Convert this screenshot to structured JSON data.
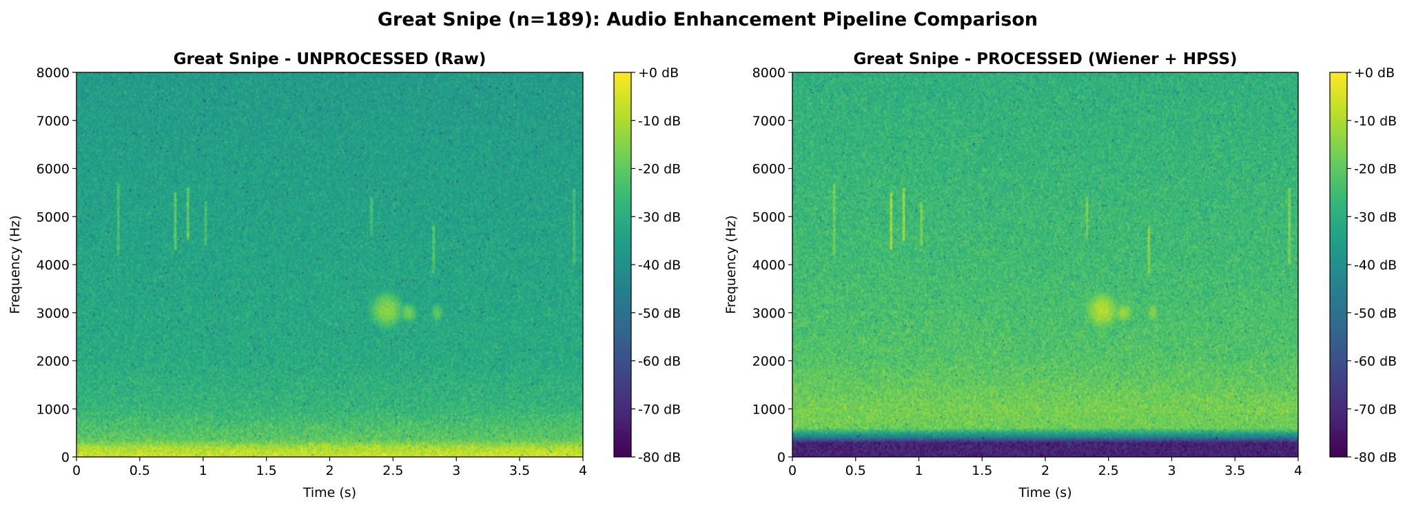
{
  "figure": {
    "suptitle": "Great Snipe (n=189): Audio Enhancement Pipeline Comparison"
  },
  "colormap": [
    "#440154",
    "#482878",
    "#3e4989",
    "#31688e",
    "#26828e",
    "#1f9e89",
    "#35b779",
    "#6ece58",
    "#b5de2b",
    "#fde725"
  ],
  "chart_data": [
    {
      "type": "heatmap",
      "title": "Great Snipe - UNPROCESSED (Raw)",
      "xlabel": "Time (s)",
      "ylabel": "Frequency (Hz)",
      "xlim": [
        0,
        4
      ],
      "ylim": [
        0,
        8000
      ],
      "x_ticks": [
        "0",
        "0.5",
        "1",
        "1.5",
        "2",
        "2.5",
        "3",
        "3.5",
        "4"
      ],
      "x_tick_values": [
        0,
        0.5,
        1,
        1.5,
        2,
        2.5,
        3,
        3.5,
        4
      ],
      "y_ticks": [
        "0",
        "1000",
        "2000",
        "3000",
        "4000",
        "5000",
        "6000",
        "7000",
        "8000"
      ],
      "y_tick_values": [
        0,
        1000,
        2000,
        3000,
        4000,
        5000,
        6000,
        7000,
        8000
      ],
      "colorbar": {
        "range_db": [
          -80,
          0
        ],
        "tick_values": [
          0,
          -10,
          -20,
          -30,
          -40,
          -50,
          -60,
          -70,
          -80
        ],
        "tick_labels": [
          "+0 dB",
          "-10 dB",
          "-20 dB",
          "-30 dB",
          "-40 dB",
          "-50 dB",
          "-60 dB",
          "-70 dB",
          "-80 dB"
        ]
      },
      "texture": {
        "base_db": [
          {
            "hz": 0,
            "db": -6
          },
          {
            "hz": 200,
            "db": -10
          },
          {
            "hz": 350,
            "db": -20
          },
          {
            "hz": 1000,
            "db": -27
          },
          {
            "hz": 2000,
            "db": -31
          },
          {
            "hz": 4000,
            "db": -33
          },
          {
            "hz": 8000,
            "db": -36
          }
        ],
        "noise_db": 6,
        "calls": [
          {
            "t": 2.45,
            "hz": 3050,
            "dur": 0.12,
            "bw": 350,
            "db": -14
          },
          {
            "t": 2.62,
            "hz": 3000,
            "dur": 0.07,
            "bw": 200,
            "db": -18
          },
          {
            "t": 2.85,
            "hz": 3000,
            "dur": 0.05,
            "bw": 200,
            "db": -20
          }
        ],
        "streaks": [
          {
            "t": 0.33,
            "hz0": 4200,
            "hz1": 5700,
            "db": -24
          },
          {
            "t": 0.78,
            "hz0": 4300,
            "hz1": 5500,
            "db": -20
          },
          {
            "t": 0.88,
            "hz0": 4500,
            "hz1": 5600,
            "db": -20
          },
          {
            "t": 1.02,
            "hz0": 4400,
            "hz1": 5300,
            "db": -24
          },
          {
            "t": 2.33,
            "hz0": 4600,
            "hz1": 5400,
            "db": -24
          },
          {
            "t": 2.82,
            "hz0": 3800,
            "hz1": 4800,
            "db": -22
          },
          {
            "t": 3.93,
            "hz0": 4000,
            "hz1": 5600,
            "db": -24
          }
        ]
      }
    },
    {
      "type": "heatmap",
      "title": "Great Snipe - PROCESSED (Wiener + HPSS)",
      "xlabel": "Time (s)",
      "ylabel": "Frequency (Hz)",
      "xlim": [
        0,
        4
      ],
      "ylim": [
        0,
        8000
      ],
      "x_ticks": [
        "0",
        "0.5",
        "1",
        "1.5",
        "2",
        "2.5",
        "3",
        "3.5",
        "4"
      ],
      "x_tick_values": [
        0,
        0.5,
        1,
        1.5,
        2,
        2.5,
        3,
        3.5,
        4
      ],
      "y_ticks": [
        "0",
        "1000",
        "2000",
        "3000",
        "4000",
        "5000",
        "6000",
        "7000",
        "8000"
      ],
      "y_tick_values": [
        0,
        1000,
        2000,
        3000,
        4000,
        5000,
        6000,
        7000,
        8000
      ],
      "colorbar": {
        "range_db": [
          -80,
          0
        ],
        "tick_values": [
          0,
          -10,
          -20,
          -30,
          -40,
          -50,
          -60,
          -70,
          -80
        ],
        "tick_labels": [
          "+0 dB",
          "-10 dB",
          "-20 dB",
          "-30 dB",
          "-40 dB",
          "-50 dB",
          "-60 dB",
          "-70 dB",
          "-80 dB"
        ]
      },
      "texture": {
        "base_db": [
          {
            "hz": 0,
            "db": -72
          },
          {
            "hz": 300,
            "db": -72
          },
          {
            "hz": 420,
            "db": -45
          },
          {
            "hz": 600,
            "db": -18
          },
          {
            "hz": 1000,
            "db": -17
          },
          {
            "hz": 2000,
            "db": -22
          },
          {
            "hz": 4000,
            "db": -25
          },
          {
            "hz": 8000,
            "db": -29
          }
        ],
        "noise_db": 6,
        "calls": [
          {
            "t": 2.45,
            "hz": 3050,
            "dur": 0.12,
            "bw": 350,
            "db": -9
          },
          {
            "t": 2.62,
            "hz": 3000,
            "dur": 0.07,
            "bw": 200,
            "db": -12
          },
          {
            "t": 2.85,
            "hz": 3000,
            "dur": 0.05,
            "bw": 200,
            "db": -15
          }
        ],
        "streaks": [
          {
            "t": 0.33,
            "hz0": 4200,
            "hz1": 5700,
            "db": -18
          },
          {
            "t": 0.78,
            "hz0": 4300,
            "hz1": 5500,
            "db": -12
          },
          {
            "t": 0.88,
            "hz0": 4500,
            "hz1": 5600,
            "db": -12
          },
          {
            "t": 1.02,
            "hz0": 4400,
            "hz1": 5300,
            "db": -17
          },
          {
            "t": 2.33,
            "hz0": 4600,
            "hz1": 5400,
            "db": -17
          },
          {
            "t": 2.82,
            "hz0": 3800,
            "hz1": 4800,
            "db": -15
          },
          {
            "t": 3.93,
            "hz0": 4000,
            "hz1": 5600,
            "db": -17
          }
        ]
      }
    }
  ]
}
